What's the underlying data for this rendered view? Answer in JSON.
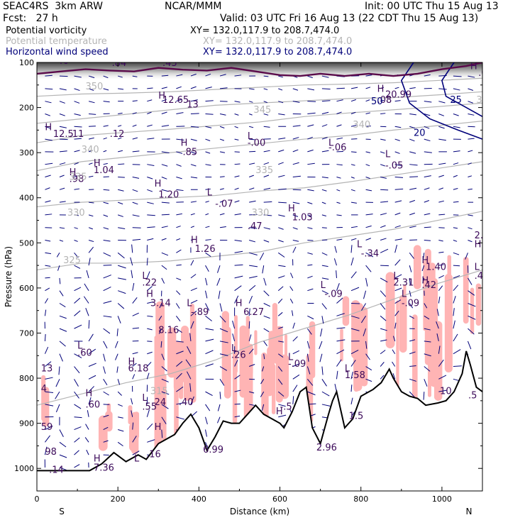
{
  "header": {
    "model": "SEAC4RS  3km ARW",
    "center": "NCAR/MMM",
    "init": "Init: 00 UTC Thu 15 Aug 13",
    "fcst": "Fcst:   27 h",
    "valid": "Valid: 03 UTC Fri 16 Aug 13 (22 CDT Thu 15 Aug 13)",
    "fields": [
      {
        "label": "Potential vorticity",
        "xy": "XY= 132.0,117.9 to 208.7,474.0",
        "color": "#000000"
      },
      {
        "label": "Potential temperature",
        "xy": "XY= 132.0,117.9 to 208.7,474.0",
        "color": "#b4b4b4"
      },
      {
        "label": "Horizontal wind speed",
        "xy": "XY= 132.0,117.9 to 208.7,474.0",
        "color": "#00007a"
      }
    ]
  },
  "chart_data": {
    "type": "cross-section",
    "xlabel": "Distance (km)",
    "ylabel": "Pressure (hPa)",
    "xlim": [
      0,
      1100
    ],
    "ylim": [
      1050,
      100
    ],
    "x_ticks": [
      0,
      200,
      400,
      600,
      800,
      1000
    ],
    "y_ticks": [
      100,
      200,
      300,
      400,
      500,
      600,
      700,
      800,
      900,
      1000
    ],
    "x_end_labels": {
      "left": "S",
      "right": "N"
    },
    "colors": {
      "terrain": "#000000",
      "pv_fill": "#ffb4b4",
      "theta": "#b4b4b4",
      "wind_contour": "#00007a",
      "arrows": "#00007a",
      "labels": "#3c0a5a",
      "tropopause": "#5a0a4a"
    },
    "terrain_surface": [
      [
        0,
        1005
      ],
      [
        30,
        1005
      ],
      [
        60,
        1005
      ],
      [
        100,
        1005
      ],
      [
        130,
        1005
      ],
      [
        160,
        990
      ],
      [
        190,
        965
      ],
      [
        220,
        985
      ],
      [
        250,
        970
      ],
      [
        270,
        980
      ],
      [
        300,
        945
      ],
      [
        320,
        935
      ],
      [
        340,
        925
      ],
      [
        360,
        900
      ],
      [
        380,
        880
      ],
      [
        400,
        910
      ],
      [
        420,
        960
      ],
      [
        440,
        930
      ],
      [
        460,
        895
      ],
      [
        480,
        900
      ],
      [
        500,
        900
      ],
      [
        520,
        880
      ],
      [
        540,
        860
      ],
      [
        560,
        880
      ],
      [
        580,
        890
      ],
      [
        600,
        900
      ],
      [
        610,
        910
      ],
      [
        630,
        875
      ],
      [
        650,
        830
      ],
      [
        665,
        820
      ],
      [
        680,
        910
      ],
      [
        700,
        945
      ],
      [
        720,
        880
      ],
      [
        730,
        850
      ],
      [
        740,
        830
      ],
      [
        760,
        910
      ],
      [
        780,
        890
      ],
      [
        800,
        840
      ],
      [
        830,
        825
      ],
      [
        850,
        810
      ],
      [
        870,
        780
      ],
      [
        880,
        800
      ],
      [
        900,
        830
      ],
      [
        920,
        840
      ],
      [
        940,
        845
      ],
      [
        960,
        860
      ],
      [
        990,
        855
      ],
      [
        1010,
        850
      ],
      [
        1030,
        830
      ],
      [
        1050,
        790
      ],
      [
        1060,
        740
      ],
      [
        1070,
        770
      ],
      [
        1085,
        820
      ],
      [
        1100,
        830
      ]
    ],
    "theta_isentropes": [
      {
        "label": "350",
        "p": [
          175,
          170,
          168,
          165,
          160,
          155,
          150,
          148,
          145,
          140,
          135
        ]
      },
      {
        "label": "345",
        "p": [
          235,
          225,
          215,
          205,
          195,
          190,
          185,
          180,
          178,
          172,
          165
        ]
      },
      {
        "label": "340",
        "p": [
          278,
          262,
          255,
          248,
          240,
          232,
          220,
          212,
          205,
          198,
          190
        ]
      },
      {
        "label": "335",
        "p": [
          340,
          320,
          310,
          300,
          290,
          280,
          270,
          262,
          250,
          240,
          230
        ]
      },
      {
        "label": "330",
        "p": [
          420,
          410,
          405,
          400,
          395,
          385,
          378,
          365,
          350,
          335,
          320
        ]
      },
      {
        "label": "325",
        "p": [
          560,
          545,
          545,
          540,
          530,
          520,
          500,
          485,
          470,
          450,
          430
        ]
      },
      {
        "label": "315",
        "p": [
          860,
          835,
          810,
          790,
          760,
          720,
          690,
          660,
          625,
          590,
          560
        ]
      }
    ],
    "theta_x": [
      0,
      110,
      220,
      330,
      440,
      550,
      660,
      770,
      880,
      990,
      1100
    ],
    "tropopause_pv": [
      [
        0,
        125
      ],
      [
        60,
        120
      ],
      [
        120,
        115
      ],
      [
        180,
        118
      ],
      [
        240,
        120
      ],
      [
        300,
        112
      ],
      [
        360,
        116
      ],
      [
        420,
        118
      ],
      [
        480,
        112
      ],
      [
        540,
        120
      ],
      [
        600,
        128
      ],
      [
        650,
        130
      ],
      [
        700,
        125
      ],
      [
        760,
        130
      ],
      [
        820,
        125
      ],
      [
        880,
        130
      ],
      [
        940,
        125
      ],
      [
        1000,
        115
      ],
      [
        1060,
        108
      ],
      [
        1100,
        100
      ]
    ],
    "wind_contours": [
      {
        "label": "25",
        "points": [
          [
            1100,
            220
          ],
          [
            1060,
            200
          ],
          [
            1010,
            175
          ],
          [
            1000,
            140
          ],
          [
            1030,
            100
          ]
        ]
      },
      {
        "label": "20",
        "points": [
          [
            1100,
            270
          ],
          [
            1040,
            250
          ],
          [
            970,
            225
          ],
          [
            920,
            190
          ],
          [
            900,
            140
          ],
          [
            930,
            100
          ]
        ]
      }
    ],
    "pv_shading": [
      {
        "x": [
          275,
          440
        ],
        "p": [
          620,
          1005
        ]
      },
      {
        "x": [
          460,
          690
        ],
        "p": [
          630,
          900
        ]
      },
      {
        "x": [
          520,
          640
        ],
        "p": [
          690,
          880
        ]
      },
      {
        "x": [
          745,
          840
        ],
        "p": [
          580,
          830
        ]
      },
      {
        "x": [
          860,
          1100
        ],
        "p": [
          500,
          850
        ]
      },
      {
        "x": [
          0,
          30
        ],
        "p": [
          760,
          1000
        ]
      },
      {
        "x": [
          150,
          250
        ],
        "p": [
          830,
          975
        ]
      }
    ],
    "extrema_labels": [
      {
        "t": "H",
        "x": 300,
        "p": 180
      },
      {
        "t": "12.65",
        "x": 310,
        "p": 190
      },
      {
        "t": "13",
        "x": 370,
        "p": 200
      },
      {
        "t": "H",
        "x": 20,
        "p": 250
      },
      {
        "t": "12.5",
        "x": 40,
        "p": 265
      },
      {
        "t": ".11",
        "x": 80,
        "p": 265
      },
      {
        "t": ".12",
        "x": 180,
        "p": 265
      },
      {
        "t": "H",
        "x": 355,
        "p": 285
      },
      {
        "t": ".85",
        "x": 360,
        "p": 305
      },
      {
        "t": "L",
        "x": 520,
        "p": 270
      },
      {
        "t": "-.00",
        "x": 520,
        "p": 285
      },
      {
        "t": "L",
        "x": 720,
        "p": 285
      },
      {
        "t": "-.06",
        "x": 720,
        "p": 295
      },
      {
        "t": "L",
        "x": 860,
        "p": 310
      },
      {
        "t": "-.05",
        "x": 860,
        "p": 335
      },
      {
        "t": "H",
        "x": 140,
        "p": 330
      },
      {
        "t": "1.04",
        "x": 140,
        "p": 345
      },
      {
        "t": "H",
        "x": 80,
        "p": 350
      },
      {
        "t": ".98",
        "x": 80,
        "p": 365
      },
      {
        "t": "H",
        "x": 290,
        "p": 375
      },
      {
        "t": "1.20",
        "x": 300,
        "p": 400
      },
      {
        "t": "L",
        "x": 420,
        "p": 395
      },
      {
        "t": "-.07",
        "x": 440,
        "p": 420
      },
      {
        "t": "H",
        "x": 620,
        "p": 430
      },
      {
        "t": "1.03",
        "x": 630,
        "p": 450
      },
      {
        "t": ".47",
        "x": 520,
        "p": 470
      },
      {
        "t": "H",
        "x": 380,
        "p": 500
      },
      {
        "t": "1.26",
        "x": 390,
        "p": 520
      },
      {
        "t": "L",
        "x": 790,
        "p": 510
      },
      {
        "t": "-.34",
        "x": 800,
        "p": 530
      },
      {
        "t": "H",
        "x": 950,
        "p": 545
      },
      {
        "t": "1.40",
        "x": 960,
        "p": 560
      },
      {
        "t": "H",
        "x": 1080,
        "p": 510
      },
      {
        "t": "2.5",
        "x": 1080,
        "p": 490
      },
      {
        "t": "L",
        "x": 1080,
        "p": 560
      },
      {
        "t": ".49",
        "x": 1080,
        "p": 580
      },
      {
        "t": "L",
        "x": 260,
        "p": 580
      },
      {
        "t": ".22",
        "x": 260,
        "p": 595
      },
      {
        "t": "H",
        "x": 270,
        "p": 620
      },
      {
        "t": "3.14",
        "x": 280,
        "p": 640
      },
      {
        "t": "L",
        "x": 370,
        "p": 640
      },
      {
        "t": "-.89",
        "x": 380,
        "p": 660
      },
      {
        "t": "H",
        "x": 490,
        "p": 640
      },
      {
        "t": "6.27",
        "x": 510,
        "p": 660
      },
      {
        "t": "L",
        "x": 700,
        "p": 600
      },
      {
        "t": "-.09",
        "x": 710,
        "p": 620
      },
      {
        "t": "L",
        "x": 880,
        "p": 580
      },
      {
        "t": "2.31",
        "x": 880,
        "p": 595
      },
      {
        "t": "H",
        "x": 950,
        "p": 590
      },
      {
        "t": ".42",
        "x": 950,
        "p": 600
      },
      {
        "t": "L",
        "x": 900,
        "p": 620
      },
      {
        "t": "-.09",
        "x": 900,
        "p": 640
      },
      {
        "t": "8.16",
        "x": 300,
        "p": 700
      },
      {
        "t": "L",
        "x": 100,
        "p": 735
      },
      {
        "t": ".60",
        "x": 100,
        "p": 750
      },
      {
        "t": "H",
        "x": 225,
        "p": 770
      },
      {
        "t": "6.18",
        "x": 225,
        "p": 785
      },
      {
        "t": "L",
        "x": 480,
        "p": 740
      },
      {
        "t": ".26",
        "x": 480,
        "p": 755
      },
      {
        "t": "L",
        "x": 620,
        "p": 760
      },
      {
        "t": "-.09",
        "x": 620,
        "p": 775
      },
      {
        "t": "L",
        "x": 760,
        "p": 785
      },
      {
        "t": "1.58",
        "x": 760,
        "p": 800
      },
      {
        "t": "13",
        "x": 10,
        "p": 785
      },
      {
        "t": "4",
        "x": 10,
        "p": 830
      },
      {
        "t": "H",
        "x": 120,
        "p": 840
      },
      {
        "t": ".60",
        "x": 120,
        "p": 865
      },
      {
        "t": "L",
        "x": 260,
        "p": 850
      },
      {
        "t": ".55",
        "x": 260,
        "p": 870
      },
      {
        "t": "24",
        "x": 290,
        "p": 860
      },
      {
        "t": ".40",
        "x": 350,
        "p": 860
      },
      {
        "t": "H",
        "x": 590,
        "p": 880
      },
      {
        "t": "-.5",
        "x": 600,
        "p": 870
      },
      {
        "t": "1.5",
        "x": 770,
        "p": 890
      },
      {
        "t": "59",
        "x": 10,
        "p": 915
      },
      {
        "t": "10",
        "x": 995,
        "p": 835
      },
      {
        "t": ".5",
        "x": 1065,
        "p": 845
      },
      {
        "t": "H",
        "x": 290,
        "p": 915
      },
      {
        "t": "2.96",
        "x": 690,
        "p": 960
      },
      {
        "t": "6.99",
        "x": 410,
        "p": 965
      },
      {
        "t": "98",
        "x": 20,
        "p": 970
      },
      {
        "t": ".14",
        "x": 30,
        "p": 1010
      },
      {
        "t": "H",
        "x": 140,
        "p": 985
      },
      {
        "t": "7.36",
        "x": 140,
        "p": 1005
      },
      {
        "t": "L",
        "x": 240,
        "p": 985
      },
      {
        "t": ".16",
        "x": 270,
        "p": 975
      },
      {
        "t": ".84",
        "x": 185,
        "p": 108
      },
      {
        "t": ".43",
        "x": 310,
        "p": 108
      },
      {
        "t": "H",
        "x": 840,
        "p": 165
      },
      {
        "t": "20.99",
        "x": 860,
        "p": 178
      },
      {
        "t": ".08",
        "x": 840,
        "p": 190
      },
      {
        "t": "H",
        "x": 1070,
        "p": 115
      },
      {
        "t": ".08",
        "x": 1090,
        "p": 130
      },
      {
        "t": "40",
        "x": 50,
        "p": 103
      }
    ],
    "theta_label_positions": [
      {
        "t": "350",
        "x": 120,
        "p": 160
      },
      {
        "t": "345",
        "x": 535,
        "p": 212
      },
      {
        "t": "345",
        "x": 1085,
        "p": 190
      },
      {
        "t": "340",
        "x": 110,
        "p": 300
      },
      {
        "t": "340",
        "x": 780,
        "p": 245
      },
      {
        "t": "335",
        "x": 80,
        "p": 360
      },
      {
        "t": "335",
        "x": 540,
        "p": 345
      },
      {
        "t": "330",
        "x": 75,
        "p": 440
      },
      {
        "t": "330",
        "x": 530,
        "p": 440
      },
      {
        "t": "325",
        "x": 65,
        "p": 545
      },
      {
        "t": "315",
        "x": 280,
        "p": 835
      },
      {
        "t": "50",
        "x": 825,
        "p": 193
      },
      {
        "t": "25",
        "x": 1020,
        "p": 190
      },
      {
        "t": "20",
        "x": 930,
        "p": 263
      }
    ]
  }
}
